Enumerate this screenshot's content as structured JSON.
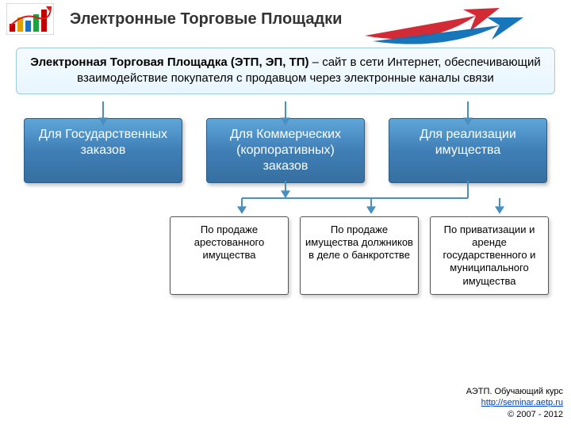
{
  "header": {
    "title": "Электронные Торговые Площадки"
  },
  "definition": {
    "bold": "Электронная Торговая Площадка (ЭТП, ЭП, ТП)",
    "rest": " – сайт в сети Интернет, обеспечивающий взаимодействие покупателя с продавцом через электронные каналы связи"
  },
  "categories": [
    {
      "label": "Для Государственных заказов"
    },
    {
      "label": "Для Коммерческих (корпоративных) заказов"
    },
    {
      "label": "Для реализации имущества"
    }
  ],
  "subs": [
    {
      "label": "По продаже арестованного имущества"
    },
    {
      "label": "По продаже имущества должников в деле о банкротстве"
    },
    {
      "label": "По приватизации и аренде государственного и муниципального имущества"
    }
  ],
  "footer": {
    "line1": "АЭТП. Обучающий курс",
    "link": "http://seminar.aetp.ru",
    "copyright": "© 2007 - 2012"
  },
  "style": {
    "swoosh_colors": [
      "#d0202a",
      "#0b6fb5"
    ],
    "cat_gradient_top": "#5fa7d8",
    "cat_gradient_bot": "#376fa0",
    "def_gradient_top": "#f5fbff",
    "def_gradient_bot": "#e8f6ff",
    "def_border": "#9ec8e0",
    "connector_color": "#4a8fbf",
    "connector_width": 2,
    "arrowhead_size": 6
  },
  "logo": {
    "bars": [
      {
        "x": 4,
        "h": 10,
        "c": "#c00000"
      },
      {
        "x": 14,
        "h": 18,
        "c": "#e0a000"
      },
      {
        "x": 24,
        "h": 14,
        "c": "#2070c0"
      },
      {
        "x": 34,
        "h": 22,
        "c": "#20a040"
      },
      {
        "x": 44,
        "h": 28,
        "c": "#c00000"
      }
    ],
    "arrow_color": "#d02020"
  }
}
